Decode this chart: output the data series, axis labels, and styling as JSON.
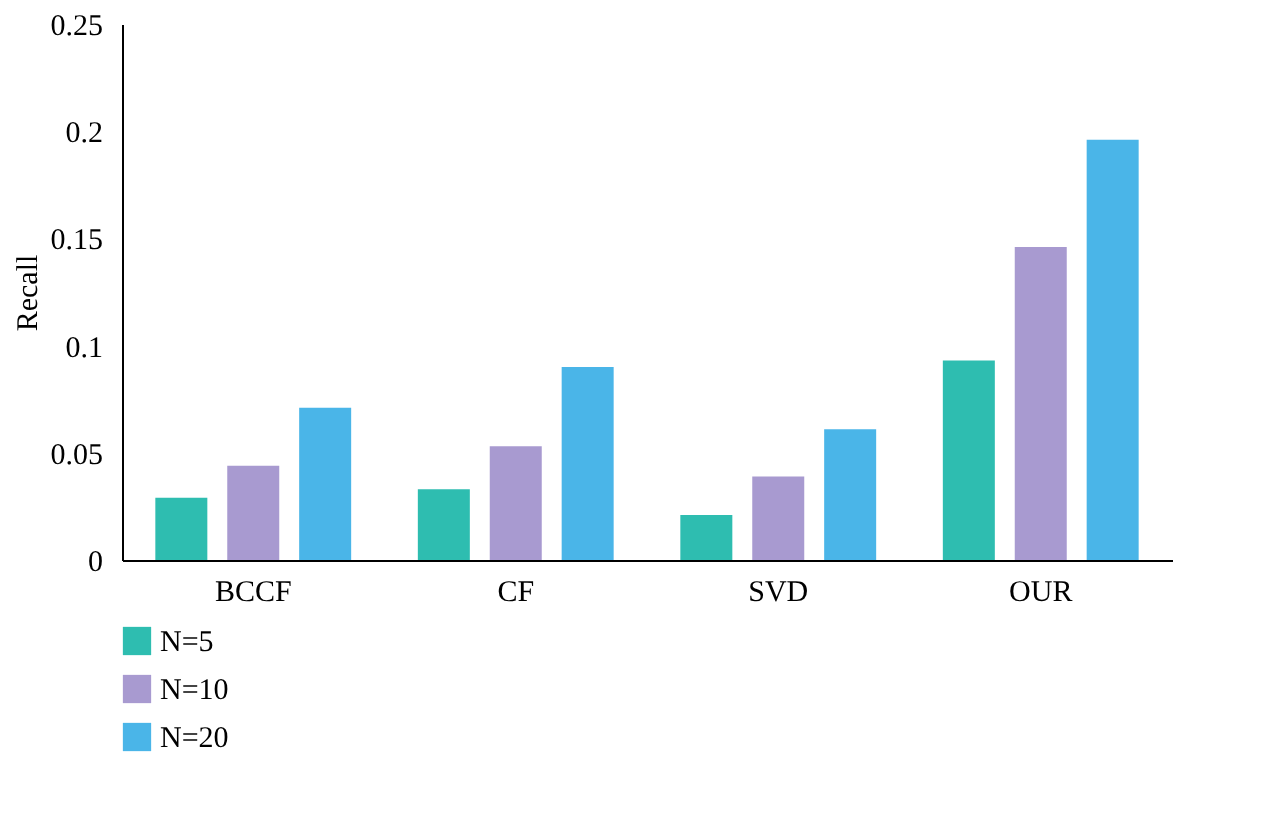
{
  "chart_data": {
    "type": "bar",
    "ylabel": "Recall",
    "categories": [
      "BCCF",
      "CF",
      "SVD",
      "OUR"
    ],
    "series": [
      {
        "name": "N=5",
        "color": "#2ebdb0",
        "values": [
          0.029,
          0.033,
          0.021,
          0.093
        ]
      },
      {
        "name": "N=10",
        "color": "#a89ad0",
        "values": [
          0.044,
          0.053,
          0.039,
          0.146
        ]
      },
      {
        "name": "N=20",
        "color": "#4ab5e8",
        "values": [
          0.071,
          0.09,
          0.061,
          0.196
        ]
      }
    ],
    "ylim": [
      0,
      0.25
    ],
    "yticks": [
      {
        "value": 0,
        "label": "0"
      },
      0.05,
      {
        "value": 0.1,
        "label": "0.1"
      },
      0.15,
      {
        "value": 0.2,
        "label": "0.2"
      },
      0.25
    ],
    "grid": false,
    "legend": "bottom left"
  }
}
